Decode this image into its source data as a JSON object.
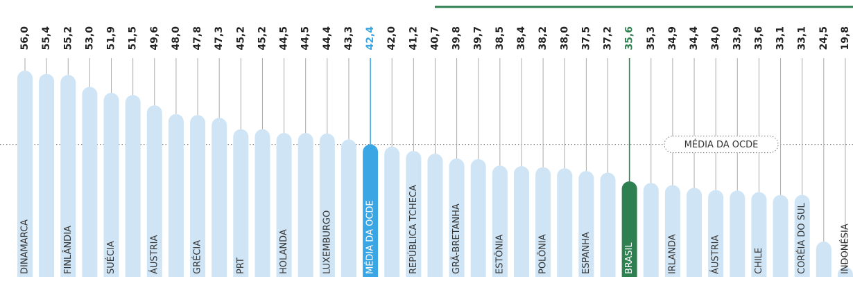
{
  "chart_data": {
    "type": "bar",
    "categories": [
      "DINAMARCA",
      null,
      "FINLÂNDIA",
      null,
      "SUÉCIA",
      null,
      "ÁUSTRIA",
      null,
      "GRÉCIA",
      null,
      "PRT",
      null,
      "HOLANDA",
      null,
      "LUXEMBURGO",
      null,
      "MÉDIA DA OCDE",
      null,
      "REPÚBLICA TCHECA",
      null,
      "GRÃ-BRETANHA",
      null,
      "ESTÔNIA",
      null,
      "POLÔNIA",
      null,
      "ESPANHA",
      null,
      "BRASIL",
      null,
      "IRLANDA",
      null,
      "ÁUSTRIA",
      null,
      "CHILE",
      null,
      "CORÉIA DO SUL",
      null,
      "INDONÉSIA"
    ],
    "values": [
      56.0,
      55.4,
      55.2,
      53.0,
      51.9,
      51.5,
      49.6,
      48.0,
      47.8,
      47.3,
      45.2,
      45.2,
      44.5,
      44.5,
      44.4,
      43.3,
      42.4,
      42.0,
      41.2,
      40.7,
      39.8,
      39.7,
      38.5,
      38.4,
      38.2,
      38.0,
      37.5,
      37.2,
      35.6,
      35.3,
      34.9,
      34.4,
      34.0,
      33.9,
      33.6,
      33.1,
      33.1,
      24.5,
      19.8
    ],
    "value_labels": [
      "56,0",
      "55,4",
      "55,2",
      "53,0",
      "51,9",
      "51,5",
      "49,6",
      "48,0",
      "47,8",
      "47,3",
      "45,2",
      "45,2",
      "44,5",
      "44,5",
      "44,4",
      "43,3",
      "42,4",
      "42,0",
      "41,2",
      "40,7",
      "39,8",
      "39,7",
      "38,5",
      "38,4",
      "38,2",
      "38,0",
      "37,5",
      "37,2",
      "35,6",
      "35,3",
      "34,9",
      "34,4",
      "34,0",
      "33,9",
      "33,6",
      "33,1",
      "33,1",
      "24,5",
      "19,8"
    ],
    "color": "#cfe4f5",
    "bar_colors": [
      "#cfe4f5",
      "#cfe4f5",
      "#cfe4f5",
      "#cfe4f5",
      "#cfe4f5",
      "#cfe4f5",
      "#cfe4f5",
      "#cfe4f5",
      "#cfe4f5",
      "#cfe4f5",
      "#cfe4f5",
      "#cfe4f5",
      "#cfe4f5",
      "#cfe4f5",
      "#cfe4f5",
      "#cfe4f5",
      "#3aa6e3",
      "#cfe4f5",
      "#cfe4f5",
      "#cfe4f5",
      "#cfe4f5",
      "#cfe4f5",
      "#cfe4f5",
      "#cfe4f5",
      "#cfe4f5",
      "#cfe4f5",
      "#cfe4f5",
      "#cfe4f5",
      "#2f8050",
      "#cfe4f5",
      "#cfe4f5",
      "#cfe4f5",
      "#cfe4f5",
      "#cfe4f5",
      "#cfe4f5",
      "#cfe4f5",
      "#cfe4f5",
      "#cfe4f5",
      "#cfe4f5"
    ],
    "ylim": [
      18,
      56
    ],
    "reference_line": {
      "value": 42.4,
      "label": "MÉDIA DA OCDE"
    }
  }
}
